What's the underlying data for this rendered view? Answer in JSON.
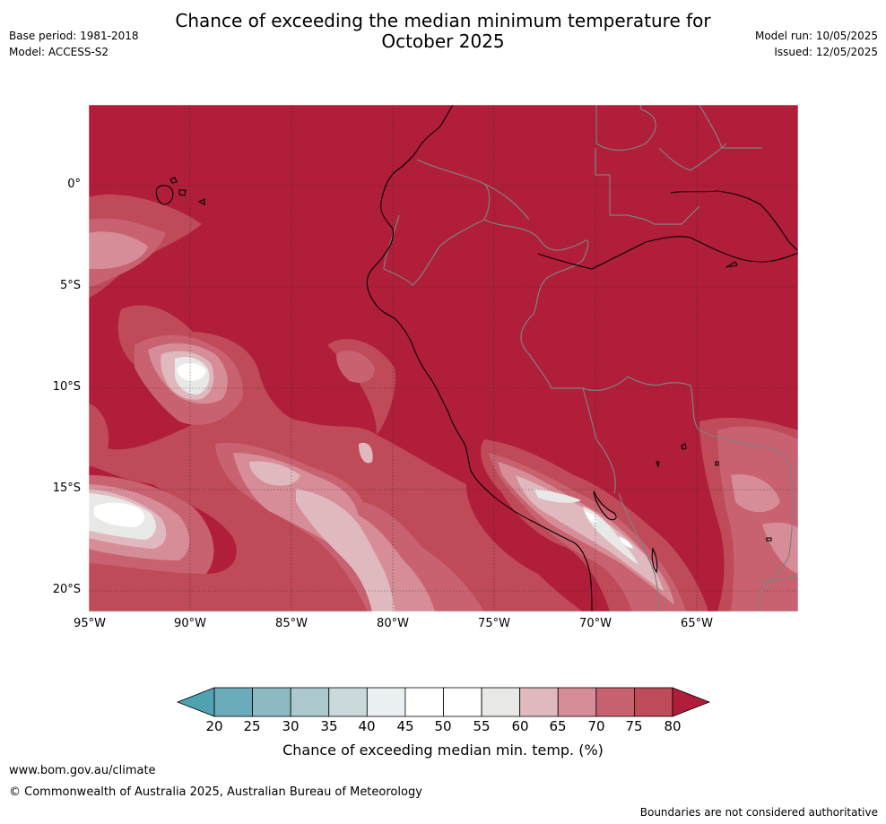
{
  "title": {
    "line1": "Chance of exceeding the median minimum temperature for",
    "line2": "October 2025"
  },
  "meta_left": {
    "base_period": "Base period: 1981-2018",
    "model": "Model: ACCESS-S2"
  },
  "meta_right": {
    "model_run": "Model run: 10/05/2025",
    "issued": "Issued: 12/05/2025"
  },
  "map": {
    "region": "Western South America and eastern Pacific",
    "background_category": "80+",
    "longitude_labels": [
      "95°W",
      "90°W",
      "85°W",
      "80°W",
      "75°W",
      "70°W",
      "65°W"
    ],
    "latitude_labels": [
      "0°",
      "5°S",
      "10°S",
      "15°S",
      "20°S"
    ]
  },
  "colorbar": {
    "ticks": [
      "20",
      "25",
      "30",
      "35",
      "40",
      "45",
      "50",
      "55",
      "60",
      "65",
      "70",
      "75",
      "80"
    ],
    "colors": [
      "#4fa3b0",
      "#6aacba",
      "#8cbac5",
      "#aac8ce",
      "#c9d9dc",
      "#eaf0f2",
      "#ffffff",
      "#ffffff",
      "#e8e8e6",
      "#e0b9bf",
      "#d68d97",
      "#c86270",
      "#bf4a58",
      "#b01e3a"
    ],
    "label": "Chance of exceeding median min. temp. (%)"
  },
  "footer": {
    "url": "www.bom.gov.au/climate",
    "copyright": "© Commonwealth of Australia 2025, Australian Bureau of Meteorology",
    "disclaimer": "Boundaries are not considered authoritative"
  }
}
